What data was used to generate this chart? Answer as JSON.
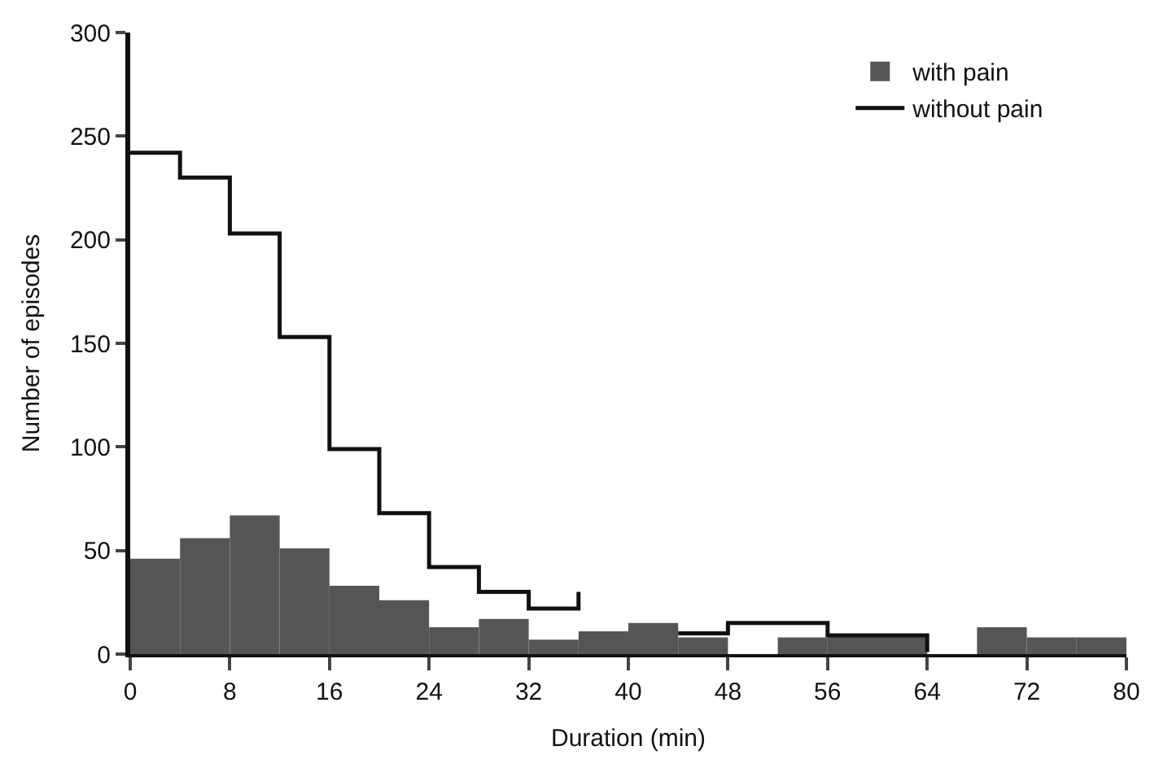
{
  "chart_data": {
    "type": "histogram",
    "xlabel": "Duration (min)",
    "ylabel": "Number of episodes",
    "bins": [
      0,
      4,
      8,
      12,
      16,
      20,
      24,
      28,
      32,
      36,
      40,
      44,
      48,
      52,
      56,
      60,
      64,
      68,
      72,
      76,
      80
    ],
    "series": [
      {
        "name": "without pain",
        "type": "step",
        "color": "#111111",
        "x": [
          0,
          4,
          8,
          12,
          16,
          20,
          24,
          28,
          32,
          36,
          40,
          44,
          48,
          52,
          56,
          60,
          64
        ],
        "values": [
          242,
          230,
          203,
          153,
          99,
          68,
          42,
          30,
          22,
          30,
          null,
          10,
          15,
          15,
          9,
          9,
          1
        ]
      },
      {
        "name": "with pain",
        "color": "#555555",
        "values": [
          46,
          56,
          67,
          51,
          33,
          26,
          13,
          17,
          7,
          11,
          15,
          8,
          0,
          8,
          9,
          9,
          0,
          13,
          8,
          8
        ]
      }
    ],
    "xlim": [
      0,
      80
    ],
    "xticks": [
      0,
      8,
      16,
      24,
      32,
      40,
      48,
      56,
      64,
      72,
      80
    ],
    "ylim": [
      0,
      300
    ],
    "yticks": [
      0,
      50,
      100,
      150,
      200,
      250,
      300
    ],
    "grid": false,
    "legend": "top right"
  }
}
